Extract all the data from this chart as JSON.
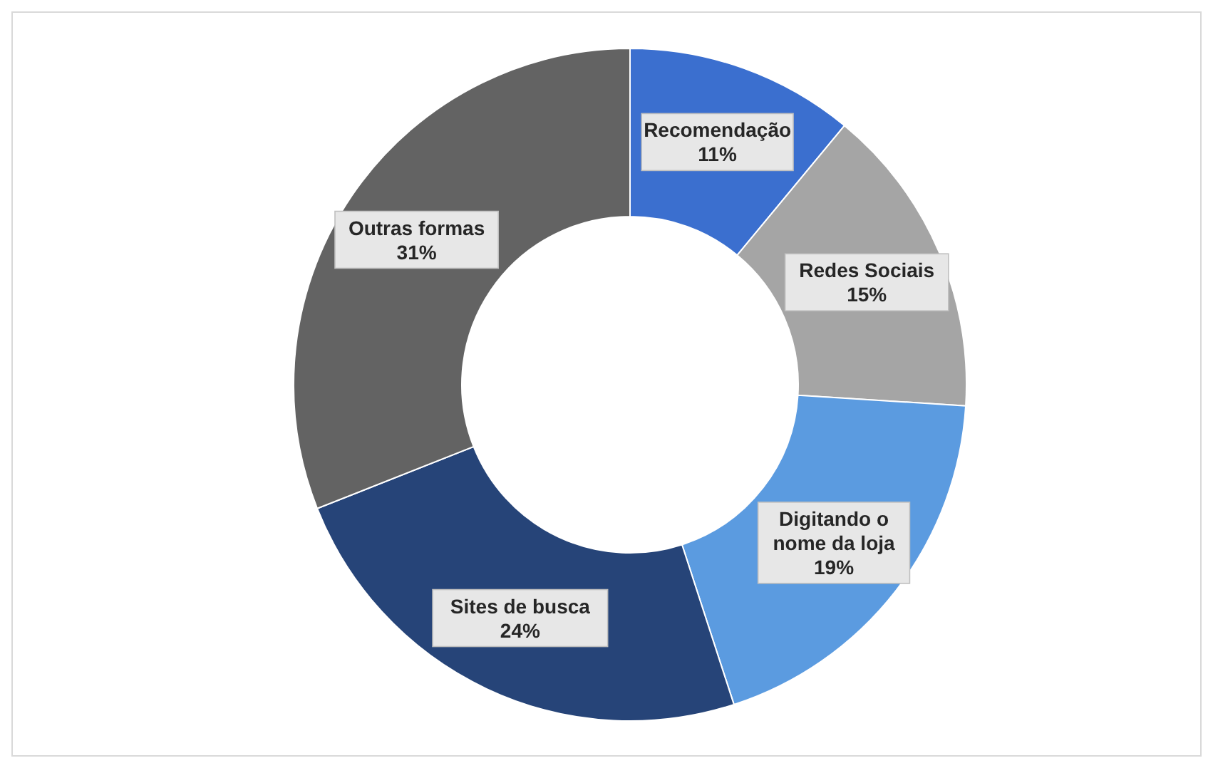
{
  "chart_data": {
    "type": "donut",
    "categories": [
      "Recomendação",
      "Redes Sociais",
      "Digitando o nome da loja",
      "Sites de busca",
      "Outras formas"
    ],
    "values": [
      11,
      15,
      19,
      24,
      31
    ],
    "value_labels": [
      "11%",
      "15%",
      "19%",
      "24%",
      "31%"
    ],
    "colors": [
      "#3b6fcf",
      "#a5a5a5",
      "#5b9be0",
      "#264478",
      "#636363"
    ]
  }
}
